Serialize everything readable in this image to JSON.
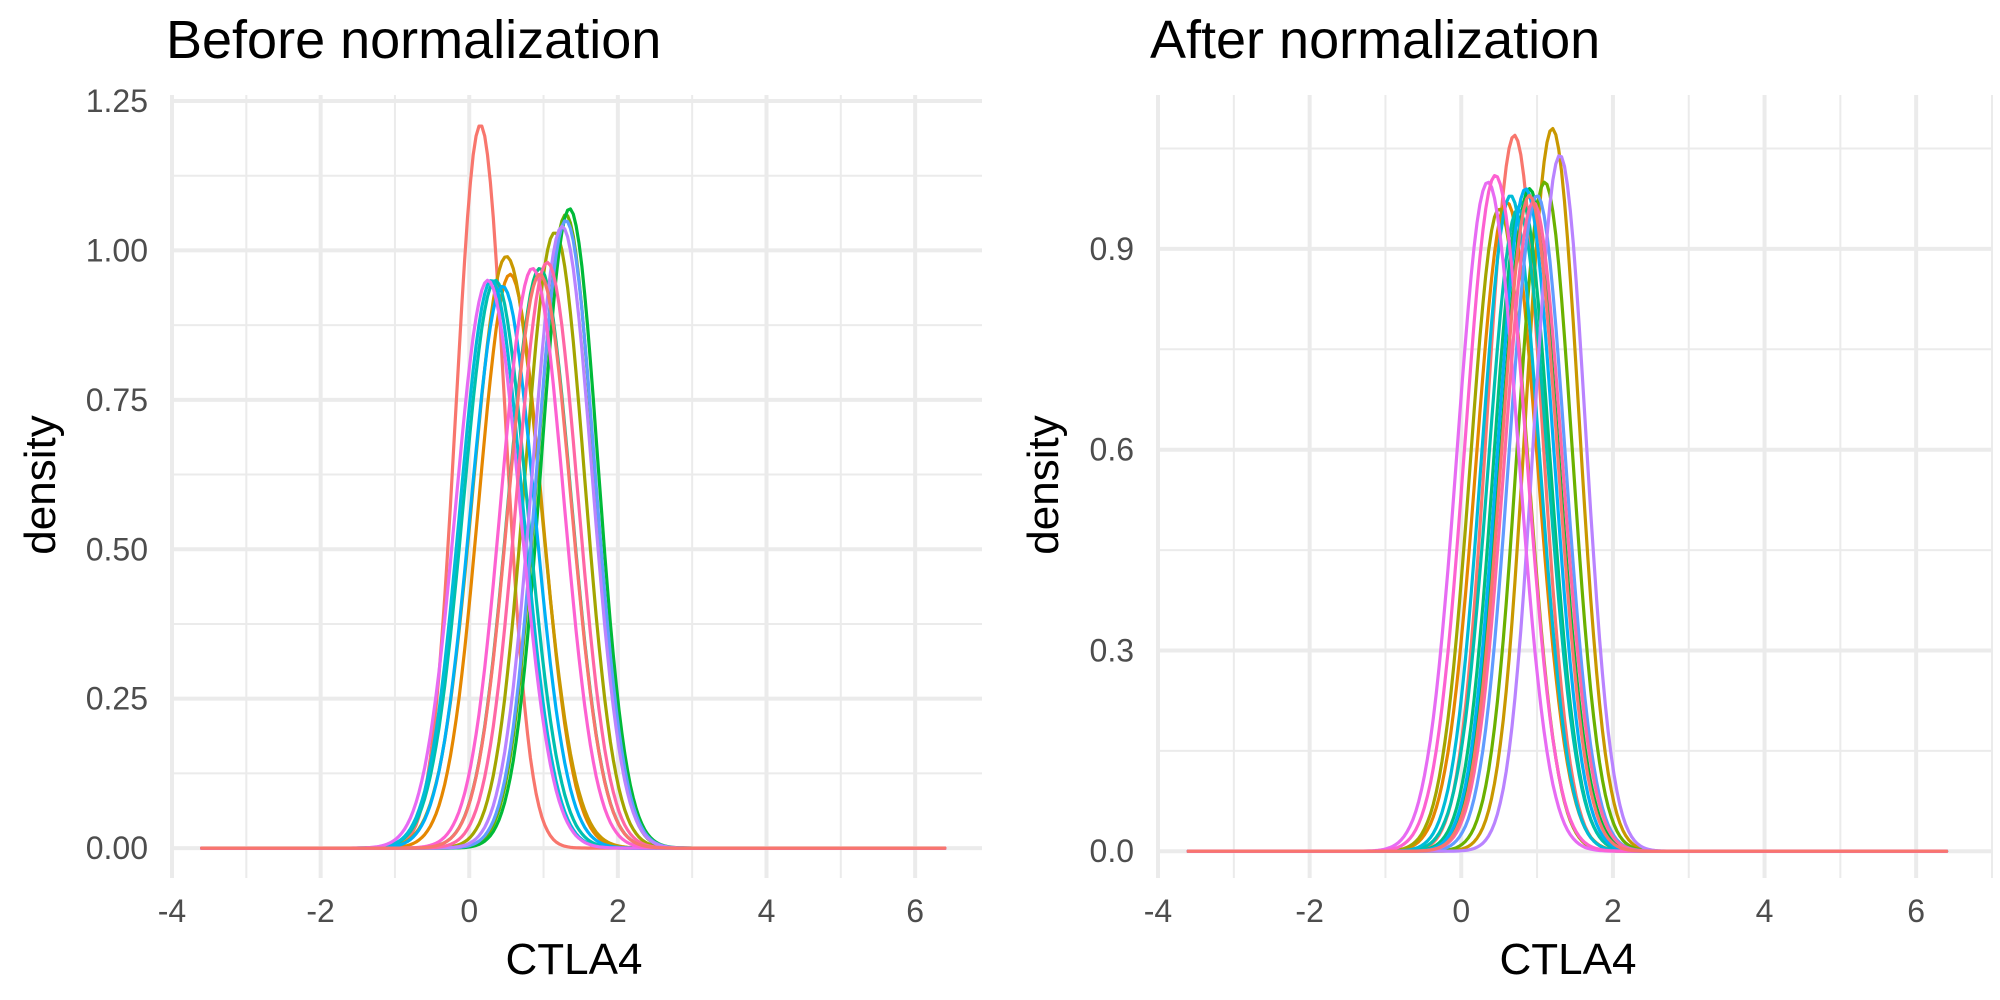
{
  "chart_data": [
    {
      "type": "line",
      "title": "Before normalization",
      "xlabel": "CTLA4",
      "ylabel": "density",
      "xlim": [
        -4,
        6.9
      ],
      "ylim": [
        -0.05,
        1.26
      ],
      "xticks": [
        -4,
        -2,
        0,
        2,
        4,
        6
      ],
      "xtick_labels": [
        "-4",
        "-2",
        "0",
        "2",
        "4",
        "6"
      ],
      "yticks": [
        0.0,
        0.25,
        0.5,
        0.75,
        1.0,
        1.25
      ],
      "ytick_labels": [
        "0.00",
        "0.25",
        "0.50",
        "0.75",
        "1.00",
        "1.25"
      ],
      "x_range": [
        -3.6,
        6.4
      ],
      "grid": true,
      "legend": "none",
      "series": [
        {
          "color": "#F8766D",
          "mean": 0.15,
          "sd": 0.33,
          "peak": 1.21
        },
        {
          "color": "#E58700",
          "mean": 0.55,
          "sd": 0.42,
          "peak": 0.96
        },
        {
          "color": "#C99800",
          "mean": 0.5,
          "sd": 0.45,
          "peak": 0.99
        },
        {
          "color": "#A3A500",
          "mean": 1.15,
          "sd": 0.4,
          "peak": 1.03
        },
        {
          "color": "#6BB100",
          "mean": 1.3,
          "sd": 0.38,
          "peak": 1.06
        },
        {
          "color": "#00BA38",
          "mean": 1.35,
          "sd": 0.38,
          "peak": 1.07
        },
        {
          "color": "#00BF7D",
          "mean": 0.95,
          "sd": 0.42,
          "peak": 0.97
        },
        {
          "color": "#00C0AF",
          "mean": 0.35,
          "sd": 0.43,
          "peak": 0.95
        },
        {
          "color": "#00BCD8",
          "mean": 0.3,
          "sd": 0.42,
          "peak": 0.95
        },
        {
          "color": "#00B0F6",
          "mean": 0.45,
          "sd": 0.43,
          "peak": 0.94
        },
        {
          "color": "#619CFF",
          "mean": 1.3,
          "sd": 0.39,
          "peak": 1.05
        },
        {
          "color": "#B983FF",
          "mean": 1.25,
          "sd": 0.4,
          "peak": 1.04
        },
        {
          "color": "#E76BF3",
          "mean": 0.25,
          "sd": 0.43,
          "peak": 0.95
        },
        {
          "color": "#FD61D1",
          "mean": 0.85,
          "sd": 0.42,
          "peak": 0.97
        },
        {
          "color": "#FF67A4",
          "mean": 1.05,
          "sd": 0.41,
          "peak": 0.98
        },
        {
          "color": "#F8766D",
          "mean": 0.95,
          "sd": 0.42,
          "peak": 0.96
        }
      ]
    },
    {
      "type": "line",
      "title": "After normalization",
      "xlabel": "CTLA4",
      "ylabel": "density",
      "xlim": [
        -4,
        7.0
      ],
      "ylim": [
        -0.04,
        1.13
      ],
      "xticks": [
        -4,
        -2,
        0,
        2,
        4,
        6
      ],
      "xtick_labels": [
        "-4",
        "-2",
        "0",
        "2",
        "4",
        "6"
      ],
      "yticks": [
        0.0,
        0.3,
        0.6,
        0.9
      ],
      "ytick_labels": [
        "0.0",
        "0.3",
        "0.6",
        "0.9"
      ],
      "x_range": [
        -3.6,
        6.4
      ],
      "grid": true,
      "legend": "none",
      "series": [
        {
          "color": "#F8766D",
          "mean": 0.7,
          "sd": 0.36,
          "peak": 1.07
        },
        {
          "color": "#E58700",
          "mean": 0.6,
          "sd": 0.4,
          "peak": 0.97
        },
        {
          "color": "#C99800",
          "mean": 1.2,
          "sd": 0.35,
          "peak": 1.08
        },
        {
          "color": "#A3A500",
          "mean": 0.5,
          "sd": 0.38,
          "peak": 0.96
        },
        {
          "color": "#6BB100",
          "mean": 1.1,
          "sd": 0.36,
          "peak": 1.0
        },
        {
          "color": "#00BA38",
          "mean": 0.9,
          "sd": 0.38,
          "peak": 0.99
        },
        {
          "color": "#00BF7D",
          "mean": 0.8,
          "sd": 0.37,
          "peak": 0.97
        },
        {
          "color": "#00C0AF",
          "mean": 0.75,
          "sd": 0.39,
          "peak": 0.96
        },
        {
          "color": "#00BCD8",
          "mean": 0.65,
          "sd": 0.38,
          "peak": 0.98
        },
        {
          "color": "#00B0F6",
          "mean": 0.85,
          "sd": 0.37,
          "peak": 0.99
        },
        {
          "color": "#619CFF",
          "mean": 1.0,
          "sd": 0.37,
          "peak": 0.98
        },
        {
          "color": "#B983FF",
          "mean": 1.3,
          "sd": 0.34,
          "peak": 1.04
        },
        {
          "color": "#E76BF3",
          "mean": 0.35,
          "sd": 0.4,
          "peak": 1.0
        },
        {
          "color": "#FD61D1",
          "mean": 0.45,
          "sd": 0.4,
          "peak": 1.01
        },
        {
          "color": "#FF67A4",
          "mean": 0.95,
          "sd": 0.38,
          "peak": 0.97
        },
        {
          "color": "#F8766D",
          "mean": 0.9,
          "sd": 0.37,
          "peak": 0.98
        }
      ]
    }
  ]
}
